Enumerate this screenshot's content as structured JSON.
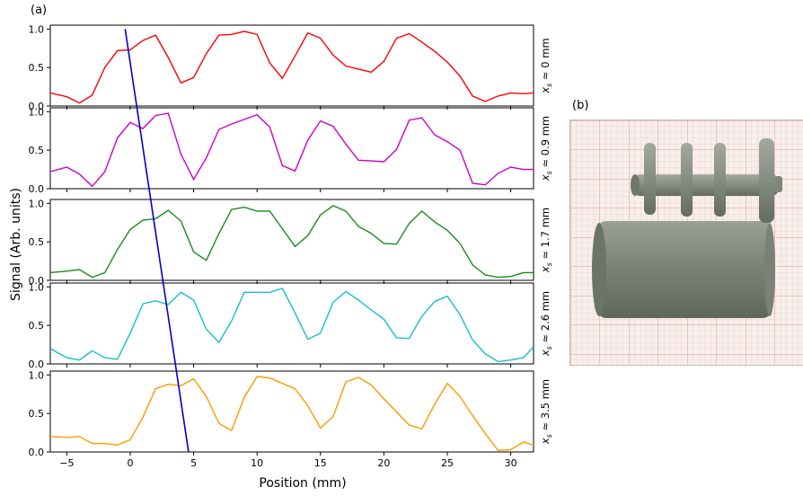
{
  "panels": {
    "a_label": "(a)",
    "b_label": "(b)"
  },
  "chart_data": {
    "type": "line",
    "xlabel": "Position (mm)",
    "ylabel": "Signal (Arb. units)",
    "xlim": [
      -6.3,
      31.8
    ],
    "ylim": [
      0,
      1.05
    ],
    "x_ticks": [
      -5,
      0,
      5,
      10,
      15,
      20,
      25,
      30
    ],
    "y_ticks": [
      0.0,
      0.5,
      1.0
    ],
    "series": [
      {
        "name": "x_s ≈ 0 mm",
        "label_main": "x",
        "label_sub": "s",
        "label_rest": " ≈ 0 mm",
        "color": "#ff0000",
        "x": [
          -6.3,
          -5,
          -4,
          -3,
          -2,
          -1,
          0,
          1,
          2,
          3,
          4,
          5,
          6,
          7,
          8,
          9,
          10,
          11,
          12,
          13,
          14,
          15,
          16,
          17,
          18,
          19,
          20,
          21,
          22,
          23,
          24,
          25,
          26,
          27,
          28,
          29,
          30,
          31,
          31.8
        ],
        "y": [
          0.17,
          0.12,
          0.04,
          0.14,
          0.5,
          0.72,
          0.73,
          0.85,
          0.92,
          0.63,
          0.3,
          0.37,
          0.68,
          0.92,
          0.93,
          0.97,
          0.93,
          0.56,
          0.36,
          0.65,
          0.95,
          0.88,
          0.66,
          0.52,
          0.48,
          0.44,
          0.58,
          0.88,
          0.94,
          0.83,
          0.71,
          0.57,
          0.39,
          0.13,
          0.06,
          0.13,
          0.17,
          0.16,
          0.17
        ]
      },
      {
        "name": "x_s ≈ 0.9 mm",
        "label_main": "x",
        "label_sub": "s",
        "label_rest": " ≈ 0.9 mm",
        "color": "#cc00cc",
        "x": [
          -6.3,
          -5,
          -4,
          -3,
          -2,
          -1,
          0,
          1,
          2,
          3,
          4,
          5,
          6,
          7,
          8,
          9,
          10,
          11,
          12,
          13,
          14,
          15,
          16,
          17,
          18,
          19,
          20,
          21,
          22,
          23,
          24,
          25,
          26,
          27,
          28,
          29,
          30,
          31,
          31.8
        ],
        "y": [
          0.22,
          0.28,
          0.19,
          0.03,
          0.22,
          0.66,
          0.86,
          0.78,
          0.95,
          0.98,
          0.45,
          0.12,
          0.4,
          0.77,
          0.84,
          0.9,
          0.96,
          0.8,
          0.3,
          0.23,
          0.63,
          0.88,
          0.81,
          0.58,
          0.37,
          0.36,
          0.35,
          0.51,
          0.89,
          0.92,
          0.7,
          0.61,
          0.5,
          0.07,
          0.05,
          0.2,
          0.28,
          0.25,
          0.25
        ]
      },
      {
        "name": "x_s ≈ 1.7 mm",
        "label_main": "x",
        "label_sub": "s",
        "label_rest": " ≈ 1.7 mm",
        "color": "#1a8c1a",
        "x": [
          -6.3,
          -5,
          -4,
          -3,
          -2,
          -1,
          0,
          1,
          2,
          3,
          4,
          5,
          6,
          7,
          8,
          9,
          10,
          11,
          12,
          13,
          14,
          15,
          16,
          17,
          18,
          19,
          20,
          21,
          22,
          23,
          24,
          25,
          26,
          27,
          28,
          29,
          30,
          31,
          31.8
        ],
        "y": [
          0.1,
          0.12,
          0.14,
          0.04,
          0.1,
          0.4,
          0.66,
          0.78,
          0.8,
          0.91,
          0.77,
          0.37,
          0.26,
          0.61,
          0.92,
          0.95,
          0.9,
          0.9,
          0.67,
          0.44,
          0.58,
          0.85,
          0.97,
          0.9,
          0.7,
          0.61,
          0.48,
          0.47,
          0.74,
          0.9,
          0.76,
          0.65,
          0.48,
          0.2,
          0.07,
          0.04,
          0.05,
          0.1,
          0.1
        ]
      },
      {
        "name": "x_s ≈ 2.6 mm",
        "label_main": "x",
        "label_sub": "s",
        "label_rest": " ≈ 2.6 mm",
        "color": "#17becf",
        "x": [
          -6.3,
          -5,
          -4,
          -3,
          -2,
          -1,
          0,
          1,
          2,
          3,
          4,
          5,
          6,
          7,
          8,
          9,
          10,
          11,
          12,
          13,
          14,
          15,
          16,
          17,
          18,
          19,
          20,
          21,
          22,
          23,
          24,
          25,
          26,
          27,
          28,
          29,
          30,
          31,
          31.8
        ],
        "y": [
          0.2,
          0.08,
          0.05,
          0.17,
          0.08,
          0.06,
          0.4,
          0.78,
          0.82,
          0.77,
          0.93,
          0.83,
          0.45,
          0.28,
          0.56,
          0.93,
          0.93,
          0.93,
          0.98,
          0.66,
          0.32,
          0.4,
          0.8,
          0.94,
          0.83,
          0.7,
          0.58,
          0.34,
          0.33,
          0.62,
          0.81,
          0.88,
          0.64,
          0.31,
          0.13,
          0.03,
          0.05,
          0.08,
          0.22
        ]
      },
      {
        "name": "x_s ≈ 3.5 mm",
        "label_main": "x",
        "label_sub": "s",
        "label_rest": " ≈ 3.5 mm",
        "color": "#ff9900",
        "x": [
          -6.3,
          -5,
          -4,
          -3,
          -2,
          -1,
          0,
          1,
          2,
          3,
          4,
          5,
          6,
          7,
          8,
          9,
          10,
          11,
          12,
          13,
          14,
          15,
          16,
          17,
          18,
          19,
          20,
          21,
          22,
          23,
          24,
          25,
          26,
          27,
          28,
          29,
          30,
          31,
          31.8
        ],
        "y": [
          0.2,
          0.19,
          0.2,
          0.11,
          0.11,
          0.09,
          0.16,
          0.45,
          0.82,
          0.88,
          0.86,
          0.95,
          0.72,
          0.37,
          0.28,
          0.71,
          0.98,
          0.96,
          0.89,
          0.82,
          0.6,
          0.31,
          0.46,
          0.91,
          0.97,
          0.87,
          0.69,
          0.52,
          0.35,
          0.3,
          0.62,
          0.89,
          0.72,
          0.47,
          0.24,
          0.02,
          0.03,
          0.13,
          0.09
        ]
      }
    ],
    "annotation_line": {
      "color": "#0000cc",
      "top": {
        "x": -0.4,
        "y": 1.0,
        "panel": 0
      },
      "bottom": {
        "x": 4.6,
        "y": 0.0,
        "panel": 4
      }
    }
  },
  "photo": {
    "grid_color": "#e8a8a0",
    "background": "#f4ecea",
    "object_color": "#7d8479"
  }
}
